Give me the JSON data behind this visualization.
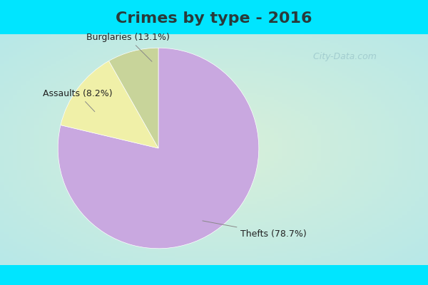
{
  "title": "Crimes by type - 2016",
  "slices": [
    78.7,
    13.1,
    8.2
  ],
  "labels": [
    "Thefts (78.7%)",
    "Burglaries (13.1%)",
    "Assaults (8.2%)"
  ],
  "colors": [
    "#c9a8e0",
    "#f0f0a8",
    "#c8d49a"
  ],
  "title_fontsize": 16,
  "label_fontsize": 9,
  "startangle": 90,
  "watermark": "  City-Data.com",
  "cyan_color": "#00e5ff",
  "bg_grad_center": "#d8eed8",
  "bg_grad_edge": "#b8e8e8",
  "title_color": "#2a3a3a",
  "label_color": "#222222",
  "annotation_color": "#888888"
}
